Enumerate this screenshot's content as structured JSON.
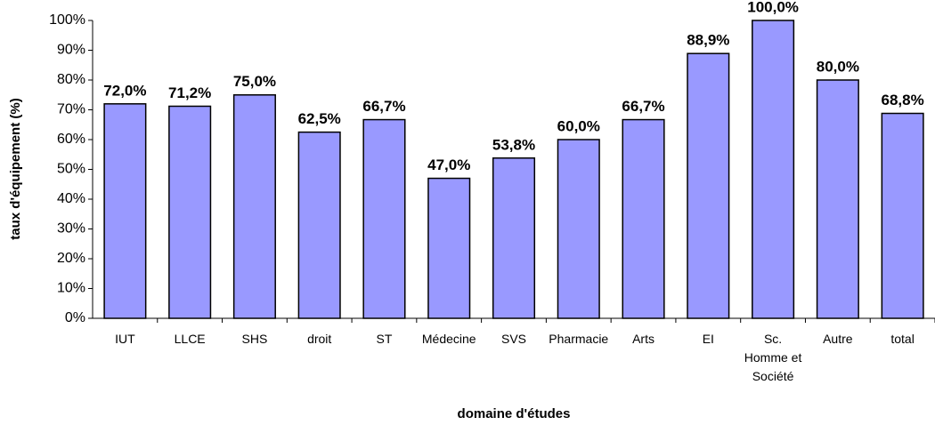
{
  "chart_data": {
    "type": "bar",
    "xlabel": "domaine d'études",
    "ylabel": "taux d'équipement (%)",
    "categories": [
      "IUT",
      "LLCE",
      "SHS",
      "droit",
      "ST",
      "Médecine",
      "SVS",
      "Pharmacie",
      "Arts",
      "EI",
      "Sc. Homme et Société",
      "Autre",
      "total"
    ],
    "values": [
      72.0,
      71.2,
      75.0,
      62.5,
      66.7,
      47.0,
      53.8,
      60.0,
      66.7,
      88.9,
      100.0,
      80.0,
      68.8
    ],
    "value_labels": [
      "72,0%",
      "71,2%",
      "75,0%",
      "62,5%",
      "66,7%",
      "47,0%",
      "53,8%",
      "60,0%",
      "66,7%",
      "88,9%",
      "100,0%",
      "80,0%",
      "68,8%"
    ],
    "color": "#9999ff",
    "ylim": [
      0,
      100
    ],
    "yticks": [
      {
        "value": 0,
        "label": "0%"
      },
      {
        "value": 10,
        "label": "10%"
      },
      {
        "value": 20,
        "label": "20%"
      },
      {
        "value": 30,
        "label": "30%"
      },
      {
        "value": 40,
        "label": "40%"
      },
      {
        "value": 50,
        "label": "50%"
      },
      {
        "value": 60,
        "label": "60%"
      },
      {
        "value": 70,
        "label": "70%"
      },
      {
        "value": 80,
        "label": "80%"
      },
      {
        "value": 90,
        "label": "90%"
      },
      {
        "value": 100,
        "label": "100%"
      }
    ],
    "grid": false
  }
}
